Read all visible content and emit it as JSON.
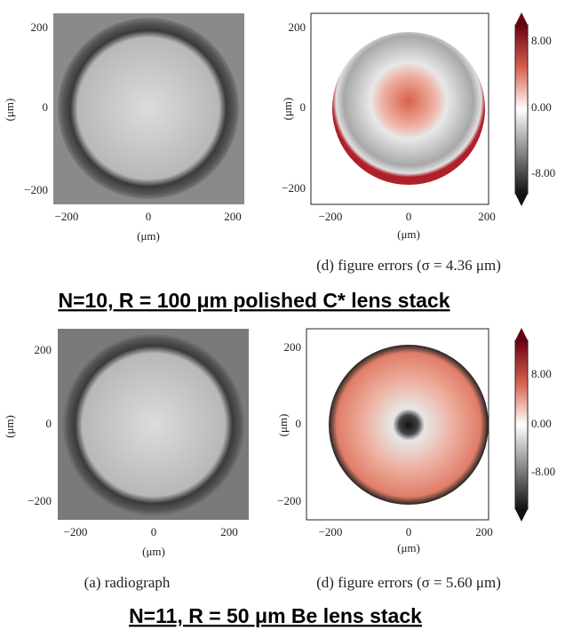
{
  "panels": [
    {
      "yticks": [
        "200",
        "0",
        "−200"
      ],
      "xticks": [
        "−200",
        "0",
        "200"
      ],
      "xlabel": "(μm)",
      "ylabel": "(μm)"
    },
    {
      "yticks": [
        "200",
        "0",
        "−200"
      ],
      "xticks": [
        "−200",
        "0",
        "200"
      ],
      "xlabel": "(μm)",
      "ylabel": "(μm)",
      "colorbar": [
        "8.00",
        "0.00",
        "-8.00"
      ]
    },
    {
      "yticks": [
        "200",
        "0",
        "−200"
      ],
      "xticks": [
        "−200",
        "0",
        "200"
      ],
      "xlabel": "(μm)",
      "ylabel": "(μm)"
    },
    {
      "yticks": [
        "200",
        "0",
        "−200"
      ],
      "xticks": [
        "−200",
        "0",
        "200"
      ],
      "xlabel": "(μm)",
      "ylabel": "(μm)",
      "colorbar": [
        "8.00",
        "0.00",
        "-8.00"
      ]
    }
  ],
  "captions": [
    "(d) figure errors (σ = 4.36 μm)",
    "(a) radiograph",
    "(d) figure errors (σ = 5.60 μm)"
  ],
  "titles": [
    "N=10, R = 100 μm polished C* lens stack",
    "N=11, R = 50 μm Be lens stack"
  ]
}
